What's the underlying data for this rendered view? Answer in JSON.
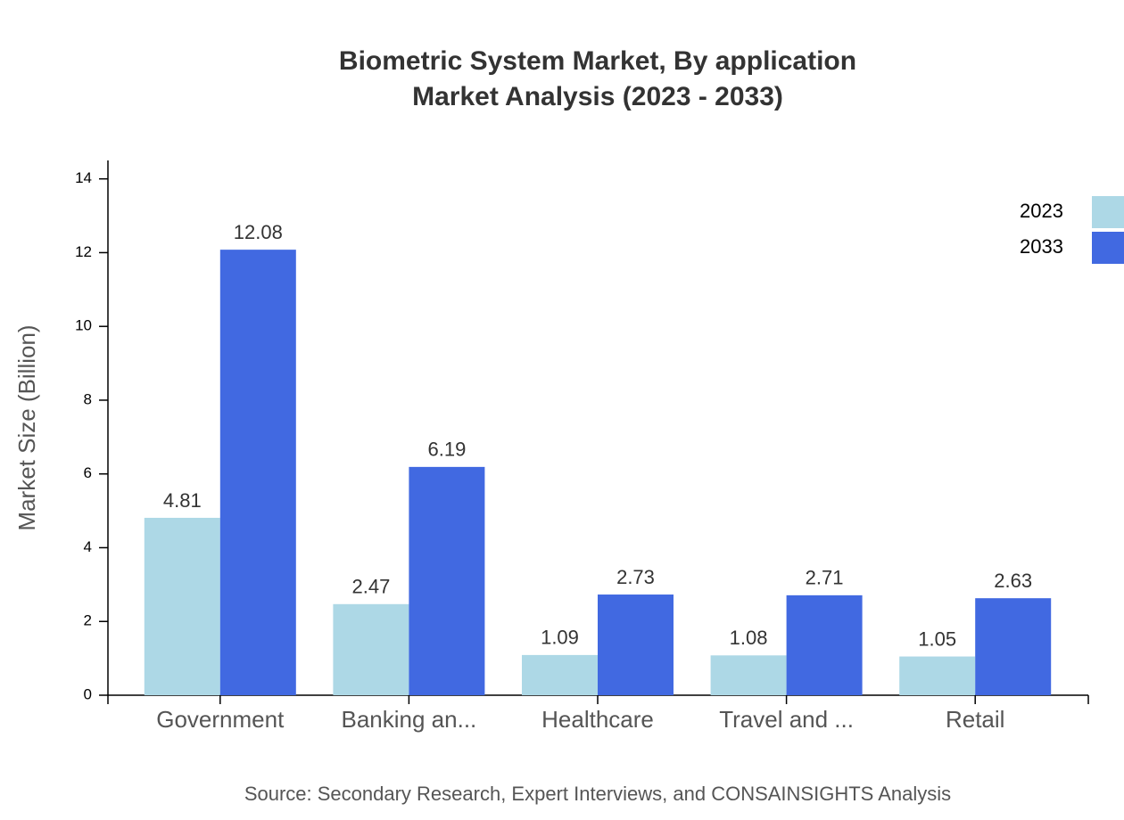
{
  "chart_data": {
    "type": "bar",
    "title": "Biometric System Market, By application",
    "subtitle": "Market Analysis (2023 - 2033)",
    "y_label": "Market Size (Billion)",
    "source": "Source: Secondary Research, Expert Interviews, and CONSAINSIGHTS Analysis",
    "categories": [
      "Government",
      "Banking an...",
      "Healthcare",
      "Travel and ...",
      "Retail"
    ],
    "series": [
      {
        "name": "2023",
        "color": "#add8e6",
        "values": [
          4.81,
          2.47,
          1.09,
          1.08,
          1.05
        ]
      },
      {
        "name": "2033",
        "color": "#4169e1",
        "values": [
          12.08,
          6.19,
          2.73,
          2.71,
          2.63
        ]
      }
    ],
    "ylim": [
      0,
      14.5
    ],
    "yticks": [
      0,
      2,
      4,
      6,
      8,
      10,
      12,
      14
    ],
    "grid": false,
    "legend": "top-right"
  }
}
